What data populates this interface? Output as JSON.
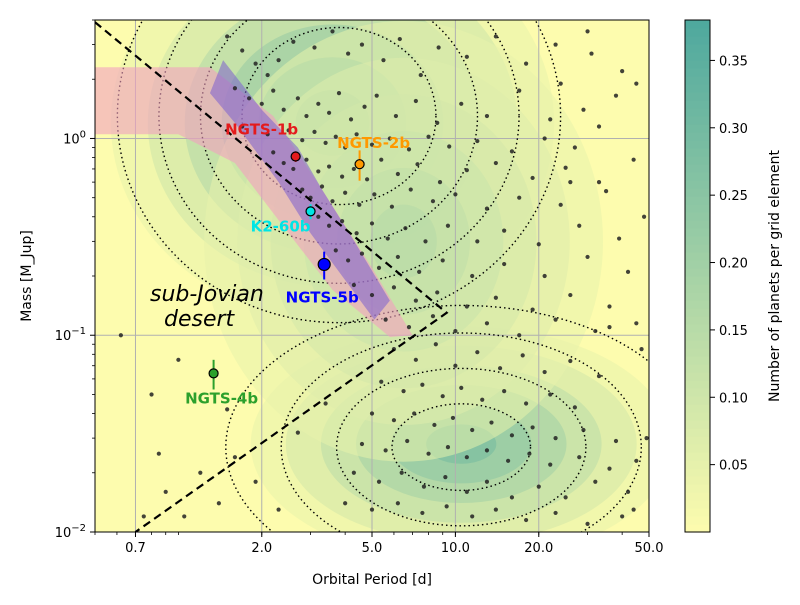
{
  "chart_data": {
    "type": "scatter",
    "title": "",
    "xlabel": "Orbital Period [d]",
    "ylabel": "Mass [M_Jup]",
    "xscale": "log",
    "yscale": "log",
    "xlim": [
      0.5,
      50
    ],
    "ylim": [
      0.01,
      4
    ],
    "grid": true,
    "x_ticks": [
      {
        "value": 0.7,
        "label": "0.7"
      },
      {
        "value": 2.0,
        "label": "2.0"
      },
      {
        "value": 5.0,
        "label": "5.0"
      },
      {
        "value": 10.0,
        "label": "10.0"
      },
      {
        "value": 20.0,
        "label": "20.0"
      },
      {
        "value": 50.0,
        "label": "50.0"
      }
    ],
    "y_ticks": [
      {
        "value": 0.01,
        "base": "10",
        "exp": "−2"
      },
      {
        "value": 0.1,
        "base": "10",
        "exp": "−1"
      },
      {
        "value": 1,
        "base": "10",
        "exp": "0"
      }
    ],
    "colorbar": {
      "label": "Number of planets per grid element",
      "range": [
        0.0,
        0.38
      ],
      "ticks": [
        {
          "value": 0.05,
          "label": "0.05"
        },
        {
          "value": 0.1,
          "label": "0.10"
        },
        {
          "value": 0.15,
          "label": "0.15"
        },
        {
          "value": 0.2,
          "label": "0.20"
        },
        {
          "value": 0.25,
          "label": "0.25"
        },
        {
          "value": 0.3,
          "label": "0.30"
        },
        {
          "value": 0.35,
          "label": "0.35"
        }
      ],
      "colors": [
        "#fdfcae",
        "#4ea89e"
      ]
    },
    "desert_label": [
      "sub-Jovian",
      "desert"
    ],
    "desert_boundary": [
      [
        0.5,
        3.9
      ],
      [
        9.3,
        0.13
      ],
      [
        0.7,
        0.01
      ]
    ],
    "highlighted_planets": [
      {
        "name": "NGTS-1b",
        "period": 2.65,
        "mass": 0.81,
        "mass_err": [
          0.05,
          0.05
        ],
        "color": "#e41a1c"
      },
      {
        "name": "NGTS-2b",
        "period": 4.51,
        "mass": 0.74,
        "mass_err": [
          0.13,
          0.13
        ],
        "color": "#ff9900"
      },
      {
        "name": "K2-60b",
        "period": 3.0,
        "mass": 0.426,
        "mass_err": [
          0.037,
          0.037
        ],
        "color": "#00e5e5"
      },
      {
        "name": "NGTS-5b",
        "period": 3.36,
        "mass": 0.229,
        "mass_err": [
          0.037,
          0.037
        ],
        "color": "#0000ff"
      },
      {
        "name": "NGTS-4b",
        "period": 1.34,
        "mass": 0.064,
        "mass_err": [
          0.011,
          0.011
        ],
        "color": "#2ca02c"
      }
    ],
    "background_planets": [
      [
        1.5,
        3.3
      ],
      [
        1.7,
        2.8
      ],
      [
        1.9,
        2.4
      ],
      [
        2.1,
        2.1
      ],
      [
        2.3,
        2.5
      ],
      [
        2.6,
        3.1
      ],
      [
        3.1,
        2.9
      ],
      [
        3.6,
        3.5
      ],
      [
        4.1,
        2.7
      ],
      [
        4.6,
        3.0
      ],
      [
        5.5,
        2.5
      ],
      [
        6.3,
        3.2
      ],
      [
        7.5,
        2.1
      ],
      [
        8.7,
        2.9
      ],
      [
        11,
        2.6
      ],
      [
        14,
        3.3
      ],
      [
        18,
        2.4
      ],
      [
        23,
        3.0
      ],
      [
        31,
        2.7
      ],
      [
        40,
        2.2
      ],
      [
        1.6,
        1.8
      ],
      [
        1.8,
        1.6
      ],
      [
        2.0,
        1.5
      ],
      [
        2.2,
        1.75
      ],
      [
        2.4,
        1.4
      ],
      [
        2.7,
        1.6
      ],
      [
        2.9,
        1.3
      ],
      [
        3.2,
        1.5
      ],
      [
        3.5,
        1.35
      ],
      [
        3.8,
        1.7
      ],
      [
        4.2,
        1.25
      ],
      [
        4.7,
        1.45
      ],
      [
        5.2,
        1.65
      ],
      [
        6.1,
        1.3
      ],
      [
        7.2,
        1.55
      ],
      [
        8.6,
        1.2
      ],
      [
        10.5,
        1.5
      ],
      [
        13,
        1.3
      ],
      [
        17,
        1.75
      ],
      [
        22,
        1.25
      ],
      [
        29,
        1.4
      ],
      [
        38,
        1.65
      ],
      [
        1.7,
        1.15
      ],
      [
        2.1,
        1.05
      ],
      [
        2.5,
        1.1
      ],
      [
        2.8,
        0.98
      ],
      [
        3.1,
        1.08
      ],
      [
        3.4,
        0.95
      ],
      [
        3.7,
        1.02
      ],
      [
        4.0,
        0.9
      ],
      [
        4.4,
        1.05
      ],
      [
        5.0,
        0.93
      ],
      [
        5.8,
        1.0
      ],
      [
        6.8,
        0.88
      ],
      [
        8.0,
        1.02
      ],
      [
        9.5,
        0.91
      ],
      [
        12,
        0.97
      ],
      [
        16,
        0.86
      ],
      [
        21,
        1.0
      ],
      [
        27,
        0.9
      ],
      [
        2.2,
        0.85
      ],
      [
        2.4,
        0.75
      ],
      [
        2.6,
        0.7
      ],
      [
        2.9,
        0.78
      ],
      [
        3.2,
        0.68
      ],
      [
        3.5,
        0.72
      ],
      [
        3.9,
        0.64
      ],
      [
        4.3,
        0.7
      ],
      [
        4.8,
        0.62
      ],
      [
        5.4,
        0.78
      ],
      [
        6.2,
        0.66
      ],
      [
        7.3,
        0.74
      ],
      [
        8.8,
        0.6
      ],
      [
        11,
        0.69
      ],
      [
        14,
        0.75
      ],
      [
        19,
        0.63
      ],
      [
        25,
        0.71
      ],
      [
        33,
        0.6
      ],
      [
        44,
        0.78
      ],
      [
        2.8,
        0.55
      ],
      [
        3.0,
        0.5
      ],
      [
        3.3,
        0.57
      ],
      [
        3.6,
        0.48
      ],
      [
        4.0,
        0.53
      ],
      [
        4.5,
        0.46
      ],
      [
        5.1,
        0.52
      ],
      [
        5.9,
        0.45
      ],
      [
        6.9,
        0.55
      ],
      [
        8.3,
        0.48
      ],
      [
        10,
        0.52
      ],
      [
        13,
        0.44
      ],
      [
        17,
        0.5
      ],
      [
        24,
        0.46
      ],
      [
        35,
        0.54
      ],
      [
        3.2,
        0.4
      ],
      [
        3.5,
        0.36
      ],
      [
        3.9,
        0.38
      ],
      [
        4.4,
        0.33
      ],
      [
        5.0,
        0.37
      ],
      [
        5.7,
        0.31
      ],
      [
        6.6,
        0.35
      ],
      [
        7.8,
        0.3
      ],
      [
        9.4,
        0.36
      ],
      [
        12,
        0.3
      ],
      [
        15,
        0.34
      ],
      [
        20,
        0.29
      ],
      [
        28,
        0.36
      ],
      [
        39,
        0.31
      ],
      [
        3.7,
        0.27
      ],
      [
        4.1,
        0.24
      ],
      [
        4.6,
        0.26
      ],
      [
        5.3,
        0.22
      ],
      [
        6.2,
        0.25
      ],
      [
        7.4,
        0.21
      ],
      [
        9.0,
        0.24
      ],
      [
        11.5,
        0.2
      ],
      [
        15,
        0.23
      ],
      [
        21,
        0.2
      ],
      [
        30,
        0.25
      ],
      [
        42,
        0.21
      ],
      [
        4.3,
        0.18
      ],
      [
        5.0,
        0.16
      ],
      [
        6.0,
        0.175
      ],
      [
        7.2,
        0.15
      ],
      [
        8.6,
        0.165
      ],
      [
        11,
        0.14
      ],
      [
        14,
        0.155
      ],
      [
        19,
        0.135
      ],
      [
        26,
        0.16
      ],
      [
        36,
        0.14
      ],
      [
        5.6,
        0.12
      ],
      [
        6.8,
        0.11
      ],
      [
        8.3,
        0.125
      ],
      [
        10,
        0.105
      ],
      [
        13,
        0.115
      ],
      [
        17,
        0.1
      ],
      [
        23,
        0.12
      ],
      [
        32,
        0.105
      ],
      [
        45,
        0.115
      ],
      [
        6.0,
        0.085
      ],
      [
        7.2,
        0.075
      ],
      [
        8.5,
        0.09
      ],
      [
        10,
        0.07
      ],
      [
        12,
        0.082
      ],
      [
        14.5,
        0.068
      ],
      [
        17.5,
        0.079
      ],
      [
        21,
        0.065
      ],
      [
        26,
        0.074
      ],
      [
        33,
        0.062
      ],
      [
        5.4,
        0.058
      ],
      [
        6.5,
        0.052
      ],
      [
        7.6,
        0.056
      ],
      [
        9.0,
        0.049
      ],
      [
        10.5,
        0.054
      ],
      [
        12.5,
        0.047
      ],
      [
        15,
        0.052
      ],
      [
        18,
        0.045
      ],
      [
        22,
        0.05
      ],
      [
        27,
        0.043
      ],
      [
        5.0,
        0.04
      ],
      [
        6.0,
        0.037
      ],
      [
        7.1,
        0.04
      ],
      [
        8.4,
        0.035
      ],
      [
        9.8,
        0.038
      ],
      [
        11.5,
        0.033
      ],
      [
        13.5,
        0.036
      ],
      [
        16,
        0.031
      ],
      [
        19,
        0.034
      ],
      [
        23,
        0.03
      ],
      [
        29,
        0.033
      ],
      [
        38,
        0.029
      ],
      [
        4.6,
        0.028
      ],
      [
        5.6,
        0.026
      ],
      [
        6.7,
        0.029
      ],
      [
        8.0,
        0.025
      ],
      [
        9.4,
        0.027
      ],
      [
        11,
        0.024
      ],
      [
        13,
        0.026
      ],
      [
        15.5,
        0.023
      ],
      [
        18.5,
        0.025
      ],
      [
        22,
        0.022
      ],
      [
        28,
        0.024
      ],
      [
        36,
        0.021
      ],
      [
        45,
        0.023
      ],
      [
        4.3,
        0.02
      ],
      [
        5.3,
        0.018
      ],
      [
        6.4,
        0.02
      ],
      [
        7.7,
        0.017
      ],
      [
        9.2,
        0.019
      ],
      [
        11,
        0.016
      ],
      [
        13,
        0.018
      ],
      [
        16,
        0.015
      ],
      [
        20,
        0.017
      ],
      [
        25,
        0.015
      ],
      [
        32,
        0.018
      ],
      [
        42,
        0.016
      ],
      [
        4.0,
        0.014
      ],
      [
        5.0,
        0.013
      ],
      [
        6.2,
        0.014
      ],
      [
        7.6,
        0.0125
      ],
      [
        9.3,
        0.0135
      ],
      [
        11.5,
        0.012
      ],
      [
        14,
        0.013
      ],
      [
        18,
        0.0115
      ],
      [
        23,
        0.0125
      ],
      [
        30,
        0.011
      ],
      [
        40,
        0.012
      ],
      [
        0.75,
        0.012
      ],
      [
        0.9,
        0.016
      ],
      [
        1.05,
        0.012
      ],
      [
        0.85,
        0.025
      ],
      [
        1.2,
        0.02
      ],
      [
        1.4,
        0.014
      ],
      [
        1.6,
        0.024
      ],
      [
        1.9,
        0.018
      ],
      [
        2.3,
        0.013
      ],
      [
        0.62,
        0.1
      ],
      [
        1.0,
        0.075
      ],
      [
        0.8,
        0.05
      ],
      [
        1.5,
        0.042
      ],
      [
        2.7,
        0.032
      ],
      [
        3.4,
        0.045
      ],
      [
        30,
        3.5
      ],
      [
        45,
        1.9
      ],
      [
        48,
        0.4
      ],
      [
        47,
        0.085
      ],
      [
        49,
        0.03
      ],
      [
        44,
        0.013
      ],
      [
        36,
        0.11
      ],
      [
        26,
        0.6
      ],
      [
        33,
        1.15
      ],
      [
        24,
        1.9
      ]
    ]
  }
}
